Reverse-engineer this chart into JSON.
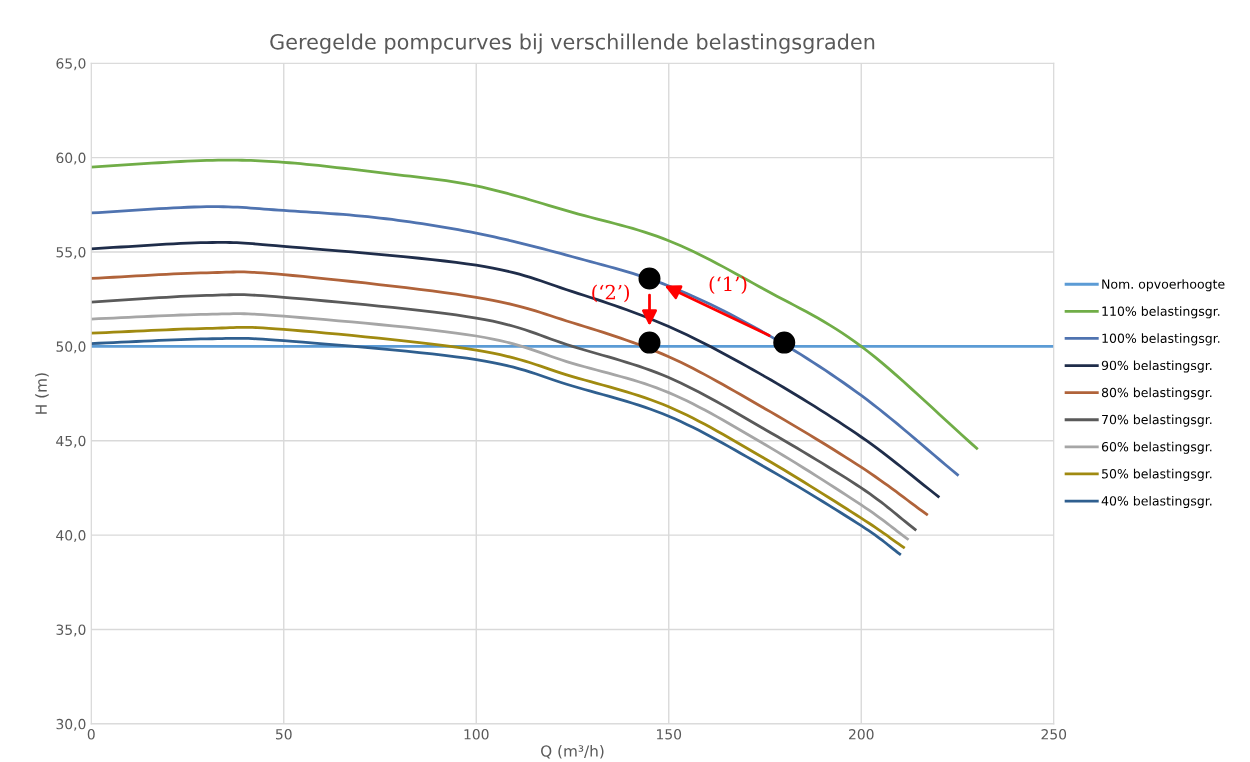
{
  "chart_data": {
    "type": "line",
    "title": "Geregelde pompcurves bij verschillende belastingsgraden",
    "xlabel": "Q (m³/h)",
    "ylabel": "H (m)",
    "xlim": [
      0,
      250
    ],
    "xticks": [
      0,
      50,
      100,
      150,
      200,
      250
    ],
    "ylim": [
      30,
      65
    ],
    "yticks": [
      {
        "value": 30,
        "label": "30,0"
      },
      {
        "value": 35,
        "label": "35,0"
      },
      {
        "value": 40,
        "label": "40,0"
      },
      {
        "value": 45,
        "label": "45,0"
      },
      {
        "value": 50,
        "label": "50,0"
      },
      {
        "value": 55,
        "label": "55,0"
      },
      {
        "value": 60,
        "label": "60,0"
      },
      {
        "value": 65,
        "label": "65,0"
      }
    ],
    "grid": true,
    "legend": "right",
    "marker": "none",
    "line_style": "solid",
    "series": [
      {
        "name": "Nom. opvoerhoogte",
        "color": "#5b9bd5",
        "x": [
          0,
          250
        ],
        "values": [
          50,
          50
        ]
      },
      {
        "name": "110% belastingsgr.",
        "color": "#70ad47",
        "x": [
          0,
          30,
          50,
          75,
          100,
          125,
          150,
          175,
          200,
          230
        ],
        "values": [
          59.5,
          59.85,
          59.75,
          59.2,
          58.5,
          57.1,
          55.6,
          53.0,
          50.0,
          44.6
        ]
      },
      {
        "name": "100% belastingsgr.",
        "color": "#4f73b0",
        "x": [
          0,
          30,
          50,
          75,
          100,
          125,
          150,
          175,
          200,
          225
        ],
        "values": [
          57.07,
          57.4,
          57.2,
          56.8,
          56.0,
          54.75,
          53.2,
          50.7,
          47.4,
          43.2
        ]
      },
      {
        "name": "90% belastingsgr.",
        "color": "#1f2d4a",
        "x": [
          0,
          30,
          50,
          100,
          125,
          150,
          175,
          200,
          220
        ],
        "values": [
          55.17,
          55.5,
          55.3,
          54.3,
          52.9,
          51.05,
          48.4,
          45.2,
          42.05
        ]
      },
      {
        "name": "80% belastingsgr.",
        "color": "#b0633a",
        "x": [
          0,
          30,
          50,
          100,
          125,
          150,
          175,
          200,
          217
        ],
        "values": [
          53.6,
          53.9,
          53.8,
          52.6,
          51.25,
          49.45,
          46.7,
          43.6,
          41.1
        ]
      },
      {
        "name": "70% belastingsgr.",
        "color": "#5a5a5a",
        "x": [
          0,
          30,
          50,
          100,
          125,
          150,
          175,
          200,
          214
        ],
        "values": [
          52.35,
          52.7,
          52.6,
          51.5,
          50.0,
          48.35,
          45.6,
          42.5,
          40.3
        ]
      },
      {
        "name": "60% belastingsgr.",
        "color": "#a6a6a6",
        "x": [
          0,
          30,
          50,
          100,
          125,
          150,
          175,
          200,
          212
        ],
        "values": [
          51.45,
          51.7,
          51.6,
          50.55,
          49.1,
          47.55,
          44.8,
          41.6,
          39.8
        ]
      },
      {
        "name": "50% belastingsgr.",
        "color": "#a08a10",
        "x": [
          0,
          30,
          50,
          100,
          125,
          150,
          175,
          200,
          211
        ],
        "values": [
          50.7,
          50.95,
          50.9,
          49.8,
          48.4,
          46.8,
          44.05,
          40.9,
          39.35
        ]
      },
      {
        "name": "40% belastingsgr.",
        "color": "#2f5f8f",
        "x": [
          0,
          30,
          50,
          100,
          125,
          150,
          175,
          200,
          210
        ],
        "values": [
          50.15,
          50.4,
          50.3,
          49.3,
          47.9,
          46.3,
          43.6,
          40.5,
          39.0
        ]
      },
      {
        "type": "scatter",
        "marker": "circle",
        "color": "#000000",
        "x": [
          180,
          145,
          145
        ],
        "values": [
          50.2,
          53.6,
          50.2
        ]
      }
    ],
    "annotations": [
      "(‘1’)",
      "(‘2’)"
    ]
  }
}
